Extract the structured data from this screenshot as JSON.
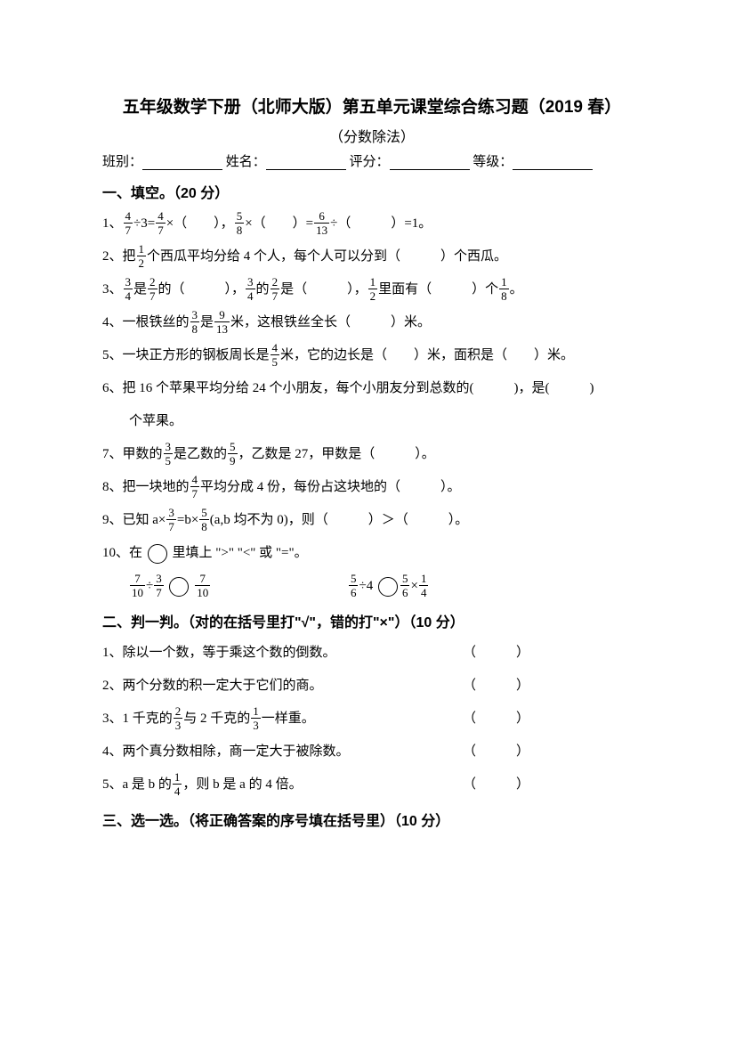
{
  "title": "五年级数学下册（北师大版）第五单元课堂综合练习题（2019 春）",
  "subtitle": "（分数除法）",
  "info": {
    "class_label": "班别：",
    "name_label": "姓名：",
    "score_label": "评分：",
    "grade_label": "等级："
  },
  "section1": {
    "heading": "一、填空。（20 分）",
    "q1_a": "1、",
    "q1_b": "÷3=",
    "q1_c": "×（　　），",
    "q1_d": "×（　　）=",
    "q1_e": "÷（　　　）=1。",
    "q2_a": "2、把",
    "q2_b": "个西瓜平均分给 4 个人，每个人可以分到（　　　）个西瓜。",
    "q3_a": "3、",
    "q3_b": "是",
    "q3_c": "的（　　　），",
    "q3_d": "的",
    "q3_e": "是（　　　），",
    "q3_f": "里面有（　　　）个",
    "q3_g": "。",
    "q4_a": "4、一根铁丝的",
    "q4_b": "是",
    "q4_c": "米，这根铁丝全长（　　　）米。",
    "q5_a": "5、一块正方形的钢板周长是",
    "q5_b": "米，它的边长是（　　）米，面积是（　　）米。",
    "q6": "6、把 16 个苹果平均分给 24 个小朋友，每个小朋友分到总数的(　　　)，是(　　　)",
    "q6_cont": "个苹果。",
    "q7_a": "7、甲数的",
    "q7_b": "是乙数的",
    "q7_c": "，乙数是 27，甲数是（　　　）。",
    "q8_a": "8、把一块地的",
    "q8_b": "平均分成 4 份，每份占这块地的（　　　）。",
    "q9_a": "9、已知 a×",
    "q9_b": "=b×",
    "q9_c": "(a,b 均不为 0)，则（　　　）＞（　　　）。",
    "q10_a": "10、在 ",
    "q10_b": " 里填上 \">\" \"<\" 或 \"=\"。",
    "q10_line_a": "÷",
    "q10_line_b": "÷4",
    "q10_line_c": "×"
  },
  "section2": {
    "heading": "二、判一判。（对的在括号里打\"√\"，错的打\"×\"）（10 分）",
    "q1": "1、除以一个数，等于乘这个数的倒数。",
    "q2": "2、两个分数的积一定大于它们的商。",
    "q3_a": "3、1 千克的",
    "q3_b": "与 2 千克的",
    "q3_c": "一样重。",
    "q4": "4、两个真分数相除，商一定大于被除数。",
    "q5_a": "5、a 是 b 的",
    "q5_b": "，则 b 是 a 的 4 倍。",
    "paren": "（　　　）"
  },
  "section3": {
    "heading": "三、选一选。（将正确答案的序号填在括号里）（10 分）"
  },
  "fractions": {
    "f4_7": {
      "n": "4",
      "d": "7"
    },
    "f5_8": {
      "n": "5",
      "d": "8"
    },
    "f6_13": {
      "n": "6",
      "d": "13"
    },
    "f1_2": {
      "n": "1",
      "d": "2"
    },
    "f3_4": {
      "n": "3",
      "d": "4"
    },
    "f2_7": {
      "n": "2",
      "d": "7"
    },
    "f1_8": {
      "n": "1",
      "d": "8"
    },
    "f3_8": {
      "n": "3",
      "d": "8"
    },
    "f9_13": {
      "n": "9",
      "d": "13"
    },
    "f4_5": {
      "n": "4",
      "d": "5"
    },
    "f3_5": {
      "n": "3",
      "d": "5"
    },
    "f5_9": {
      "n": "5",
      "d": "9"
    },
    "f4_7b": {
      "n": "4",
      "d": "7"
    },
    "f3_7": {
      "n": "3",
      "d": "7"
    },
    "f7_10": {
      "n": "7",
      "d": "10"
    },
    "f5_6": {
      "n": "5",
      "d": "6"
    },
    "f1_4": {
      "n": "1",
      "d": "4"
    },
    "f2_3": {
      "n": "2",
      "d": "3"
    },
    "f1_3": {
      "n": "1",
      "d": "3"
    }
  }
}
